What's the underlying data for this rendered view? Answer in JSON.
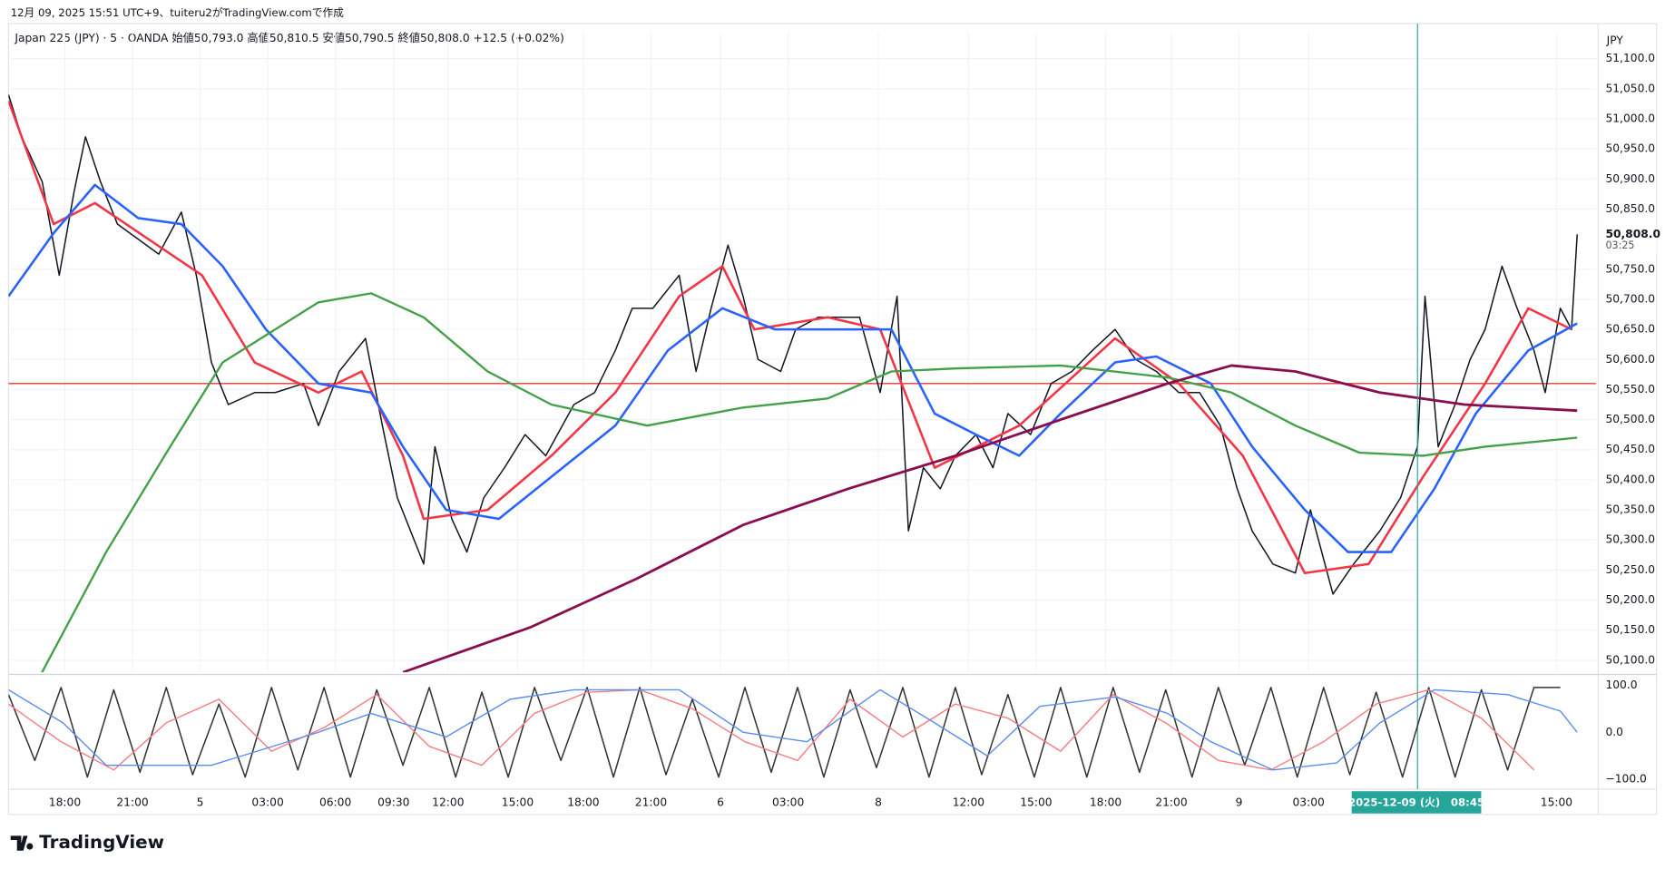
{
  "header": "12月 09, 2025 15:51 UTC+9、tuiteru2がTradingView.comで作成",
  "logo": "TradingView",
  "chart_data": [
    {
      "type": "line",
      "title": "Japan 225 (JPY) · 5 · OANDA  始値50,793.0  高値50,810.5  安値50,790.5  終値50,808.0  +12.5 (+0.02%)",
      "currency": "JPY",
      "xlim": [
        0,
        845
      ],
      "xticks": [
        {
          "value": 30,
          "label": "18:00"
        },
        {
          "value": 66,
          "label": "21:00"
        },
        {
          "value": 102,
          "label": "5"
        },
        {
          "value": 138,
          "label": "03:00"
        },
        {
          "value": 174,
          "label": "06:00"
        },
        {
          "value": 205,
          "label": "09:30"
        },
        {
          "value": 234,
          "label": "12:00"
        },
        {
          "value": 271,
          "label": "15:00"
        },
        {
          "value": 306,
          "label": "18:00"
        },
        {
          "value": 342,
          "label": "21:00"
        },
        {
          "value": 379,
          "label": "6"
        },
        {
          "value": 415,
          "label": "03:00"
        },
        {
          "value": 463,
          "label": "8"
        },
        {
          "value": 511,
          "label": "12:00"
        },
        {
          "value": 547,
          "label": "15:00"
        },
        {
          "value": 584,
          "label": "18:00"
        },
        {
          "value": 619,
          "label": "21:00"
        },
        {
          "value": 655,
          "label": "9"
        },
        {
          "value": 692,
          "label": "03:00"
        },
        {
          "value": 824,
          "label": "15:00"
        }
      ],
      "ylim": [
        50080,
        51144
      ],
      "yticks": [
        {
          "value": 50100,
          "label": "50,100.0"
        },
        {
          "value": 50150,
          "label": "50,150.0"
        },
        {
          "value": 50200,
          "label": "50,200.0"
        },
        {
          "value": 50250,
          "label": "50,250.0"
        },
        {
          "value": 50300,
          "label": "50,300.0"
        },
        {
          "value": 50350,
          "label": "50,350.0"
        },
        {
          "value": 50400,
          "label": "50,400.0"
        },
        {
          "value": 50450,
          "label": "50,450.0"
        },
        {
          "value": 50500,
          "label": "50,500.0"
        },
        {
          "value": 50550,
          "label": "50,550.0"
        },
        {
          "value": 50600,
          "label": "50,600.0"
        },
        {
          "value": 50650,
          "label": "50,650.0"
        },
        {
          "value": 50700,
          "label": "50,700.0"
        },
        {
          "value": 50750,
          "label": "50,750.0"
        },
        {
          "value": 50850,
          "label": "50,850.0"
        },
        {
          "value": 50900,
          "label": "50,900.0"
        },
        {
          "value": 50950,
          "label": "50,950.0"
        },
        {
          "value": 51000,
          "label": "51,000.0"
        },
        {
          "value": 51050,
          "label": "51,050.0"
        },
        {
          "value": 51100,
          "label": "51,100.0"
        }
      ],
      "grid": true,
      "hline": {
        "value": 50560,
        "color": "#e53935"
      },
      "last": {
        "value": 50808,
        "label": "50,808.0",
        "countdown": "03:25"
      },
      "crosshair": {
        "x": 750,
        "label": "2025-12-09 (火)　08:45",
        "color": "#26a69a"
      },
      "series": [
        {
          "color": "#131722",
          "width": 1.3,
          "x": [
            0,
            7,
            18,
            27,
            35,
            41,
            49,
            58,
            69,
            80,
            92,
            100,
            108,
            117,
            131,
            142,
            157,
            165,
            176,
            190,
            199,
            207,
            221,
            227,
            236,
            244,
            253,
            264,
            275,
            286,
            301,
            312,
            323,
            332,
            343,
            357,
            366,
            374,
            383,
            391,
            399,
            411,
            419,
            431,
            442,
            453,
            464,
            473,
            479,
            487,
            496,
            504,
            515,
            524,
            532,
            544,
            555,
            566,
            577,
            589,
            600,
            611,
            623,
            634,
            645,
            654,
            662,
            673,
            685,
            693,
            705,
            716,
            730,
            741,
            750,
            754,
            761,
            770,
            778,
            786,
            795,
            803,
            812,
            818,
            826,
            832,
            835
          ],
          "values": [
            51040,
            50970,
            50895,
            50740,
            50880,
            50970,
            50895,
            50825,
            50800,
            50775,
            50845,
            50740,
            50595,
            50525,
            50545,
            50545,
            50560,
            50490,
            50580,
            50635,
            50490,
            50370,
            50260,
            50455,
            50335,
            50280,
            50370,
            50420,
            50475,
            50440,
            50525,
            50545,
            50615,
            50685,
            50685,
            50740,
            50580,
            50685,
            50790,
            50705,
            50600,
            50580,
            50650,
            50670,
            50670,
            50670,
            50545,
            50705,
            50315,
            50420,
            50385,
            50440,
            50475,
            50420,
            50510,
            50475,
            50560,
            50580,
            50615,
            50650,
            50600,
            50580,
            50545,
            50545,
            50490,
            50385,
            50315,
            50260,
            50245,
            50350,
            50210,
            50260,
            50315,
            50370,
            50455,
            50705,
            50455,
            50525,
            50600,
            50650,
            50755,
            50685,
            50615,
            50545,
            50685,
            50650,
            50808
          ]
        },
        {
          "color": "#f23645",
          "width": 2.2,
          "x": [
            0,
            24,
            46,
            103,
            131,
            165,
            188,
            210,
            221,
            255,
            289,
            323,
            357,
            380,
            397,
            436,
            464,
            493,
            538,
            589,
            623,
            657,
            690,
            724,
            753,
            786,
            809,
            832
          ],
          "values": [
            51030,
            50825,
            50860,
            50740,
            50595,
            50545,
            50580,
            50440,
            50335,
            50350,
            50440,
            50545,
            50705,
            50755,
            50650,
            50670,
            50650,
            50420,
            50490,
            50635,
            50560,
            50440,
            50245,
            50260,
            50405,
            50560,
            50685,
            50650
          ]
        },
        {
          "color": "#2962ff",
          "width": 2.2,
          "x": [
            0,
            24,
            46,
            69,
            92,
            114,
            137,
            165,
            193,
            210,
            233,
            261,
            295,
            323,
            351,
            380,
            408,
            442,
            470,
            493,
            515,
            538,
            560,
            589,
            611,
            640,
            662,
            690,
            713,
            736,
            759,
            781,
            809,
            835
          ],
          "values": [
            50705,
            50810,
            50890,
            50835,
            50825,
            50755,
            50650,
            50560,
            50545,
            50455,
            50350,
            50335,
            50420,
            50490,
            50615,
            50685,
            50650,
            50650,
            50650,
            50510,
            50475,
            50440,
            50510,
            50595,
            50605,
            50560,
            50455,
            50350,
            50280,
            50280,
            50385,
            50510,
            50615,
            50660
          ]
        },
        {
          "color": "#43a047",
          "width": 2,
          "x": [
            17,
            52,
            86,
            114,
            142,
            165,
            193,
            221,
            255,
            289,
            340,
            391,
            436,
            470,
            504,
            560,
            617,
            651,
            685,
            719,
            753,
            786,
            835
          ],
          "values": [
            50075,
            50280,
            50455,
            50595,
            50650,
            50695,
            50710,
            50670,
            50580,
            50525,
            50490,
            50520,
            50535,
            50580,
            50585,
            50590,
            50570,
            50545,
            50490,
            50445,
            50440,
            50455,
            50470
          ]
        },
        {
          "color": "#880e4f",
          "width": 2.4,
          "x": [
            210,
            278,
            334,
            391,
            447,
            504,
            560,
            617,
            651,
            685,
            730,
            775,
            835
          ],
          "values": [
            50080,
            50155,
            50235,
            50325,
            50385,
            50440,
            50500,
            50560,
            50590,
            50580,
            50545,
            50525,
            50515
          ]
        }
      ]
    },
    {
      "type": "line",
      "xlim": [
        0,
        845
      ],
      "ylim": [
        -125,
        125
      ],
      "yticks": [
        {
          "value": 100,
          "label": "100.0"
        },
        {
          "value": 0,
          "label": "0.0"
        },
        {
          "value": -100,
          "label": "−100.0"
        }
      ],
      "series": [
        {
          "color": "#333333",
          "width": 1.3,
          "x": [
            0,
            14,
            28,
            42,
            56,
            70,
            84,
            98,
            112,
            126,
            140,
            154,
            168,
            182,
            196,
            210,
            224,
            238,
            252,
            266,
            280,
            294,
            308,
            322,
            336,
            350,
            364,
            378,
            392,
            406,
            420,
            434,
            448,
            462,
            476,
            490,
            504,
            518,
            532,
            546,
            560,
            574,
            588,
            602,
            616,
            630,
            644,
            658,
            672,
            686,
            700,
            714,
            728,
            742,
            756,
            770,
            784,
            798,
            812,
            826
          ],
          "values": [
            80,
            -60,
            95,
            -95,
            90,
            -85,
            95,
            -90,
            60,
            -95,
            95,
            -80,
            95,
            -95,
            90,
            -70,
            95,
            -95,
            85,
            -95,
            95,
            -60,
            95,
            -95,
            95,
            -90,
            70,
            -95,
            95,
            -85,
            95,
            -95,
            90,
            -75,
            95,
            -95,
            95,
            -90,
            80,
            -95,
            95,
            -95,
            95,
            -85,
            90,
            -95,
            95,
            -70,
            95,
            -95,
            95,
            -90,
            85,
            -95,
            95,
            -95,
            90,
            -80,
            95,
            95
          ]
        },
        {
          "color": "#f77c80",
          "width": 1.2,
          "x": [
            0,
            28,
            56,
            84,
            112,
            140,
            168,
            196,
            224,
            252,
            280,
            308,
            336,
            364,
            392,
            420,
            448,
            476,
            504,
            532,
            560,
            588,
            616,
            644,
            672,
            700,
            728,
            756,
            784,
            812
          ],
          "values": [
            60,
            -20,
            -80,
            20,
            70,
            -40,
            10,
            80,
            -30,
            -70,
            40,
            85,
            90,
            50,
            -20,
            -60,
            70,
            -10,
            60,
            30,
            -40,
            80,
            20,
            -60,
            -80,
            -20,
            60,
            90,
            30,
            -80
          ]
        },
        {
          "color": "#5b8def",
          "width": 1.2,
          "x": [
            0,
            29,
            52,
            108,
            165,
            193,
            233,
            267,
            301,
            357,
            391,
            425,
            464,
            493,
            521,
            549,
            589,
            617,
            640,
            673,
            707,
            730,
            759,
            798,
            826,
            835
          ],
          "values": [
            90,
            20,
            -70,
            -70,
            0,
            40,
            -10,
            70,
            90,
            90,
            0,
            -20,
            90,
            20,
            -50,
            55,
            75,
            40,
            -20,
            -80,
            -65,
            20,
            90,
            80,
            45,
            0
          ]
        }
      ]
    }
  ]
}
